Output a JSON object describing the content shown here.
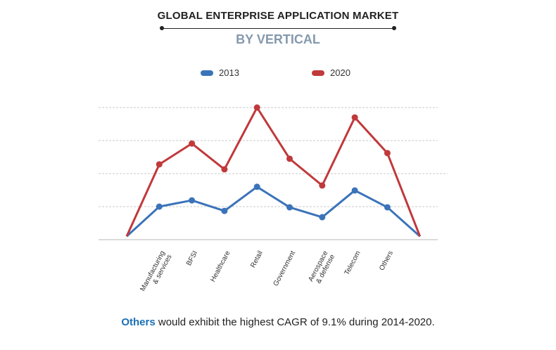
{
  "chart_data": {
    "type": "line",
    "title": "GLOBAL ENTERPRISE APPLICATION MARKET",
    "subtitle": "BY VERTICAL",
    "categories": [
      "",
      "Manufacturing & services",
      "BFSI",
      "Healthcare",
      "Retail",
      "Government",
      "Aerospace & defense",
      "Telecom",
      "Others",
      ""
    ],
    "series": [
      {
        "name": "2013",
        "color": "#3b73b9",
        "values": [
          0.1,
          1.0,
          1.19,
          0.87,
          1.6,
          0.98,
          0.68,
          1.49,
          0.98,
          0.1
        ]
      },
      {
        "name": "2020",
        "color": "#c0393b",
        "values": [
          0.1,
          2.28,
          2.91,
          2.13,
          4.0,
          2.45,
          1.64,
          3.7,
          2.62,
          0.1
        ]
      }
    ],
    "ylim": [
      0,
      4
    ],
    "y_units": "relative (no axis values printed)",
    "grid": true,
    "legend": "top-center"
  },
  "footnote": {
    "highlight": "Others",
    "text": " would exhibit the highest CAGR of 9.1% during 2014-2020."
  }
}
